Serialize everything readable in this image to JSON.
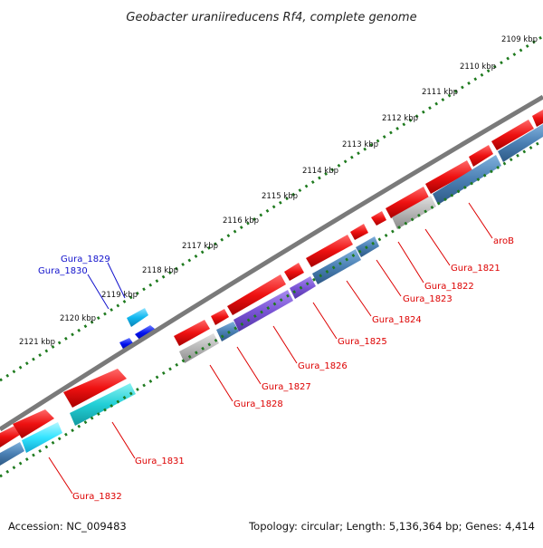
{
  "title": "Geobacter uraniireducens Rf4, complete genome",
  "footer": {
    "accession": "Accession: NC_009483",
    "topology": "Topology: circular; Length: 5,136,364 bp; Genes: 4,414"
  },
  "ticks": [
    "2109 kbp",
    "2110 kbp",
    "2111 kbp",
    "2112 kbp",
    "2113 kbp",
    "2114 kbp",
    "2115 kbp",
    "2116 kbp",
    "2117 kbp",
    "2118 kbp",
    "2119 kbp",
    "2120 kbp",
    "2121 kbp"
  ],
  "colors": {
    "backbone": "#8a8a8a",
    "tick_dots": "#1e7a1e",
    "forward_gene": "#ee1111",
    "red_label": "#dd0000",
    "blue_label": "#1111cc",
    "cds_blue": "#4a7fb3",
    "cds_purple": "#7b55d6",
    "cds_gray": "#b0b0b0",
    "cds_cyan": "#22cfd6",
    "cds_lightcyan": "#33e4ff",
    "inner_blue": "#0010ee",
    "inner_skyblue": "#11b8f0"
  },
  "genes": [
    {
      "label": "aroB",
      "color": "red_label"
    },
    {
      "label": "Gura_1821",
      "color": "red_label"
    },
    {
      "label": "Gura_1822",
      "color": "red_label"
    },
    {
      "label": "Gura_1823",
      "color": "red_label"
    },
    {
      "label": "Gura_1824",
      "color": "red_label"
    },
    {
      "label": "Gura_1825",
      "color": "red_label"
    },
    {
      "label": "Gura_1826",
      "color": "red_label"
    },
    {
      "label": "Gura_1827",
      "color": "red_label"
    },
    {
      "label": "Gura_1828",
      "color": "red_label"
    },
    {
      "label": "Gura_1829",
      "color": "blue_label"
    },
    {
      "label": "Gura_1830",
      "color": "blue_label"
    },
    {
      "label": "Gura_1831",
      "color": "red_label"
    },
    {
      "label": "Gura_1832",
      "color": "red_label"
    }
  ]
}
